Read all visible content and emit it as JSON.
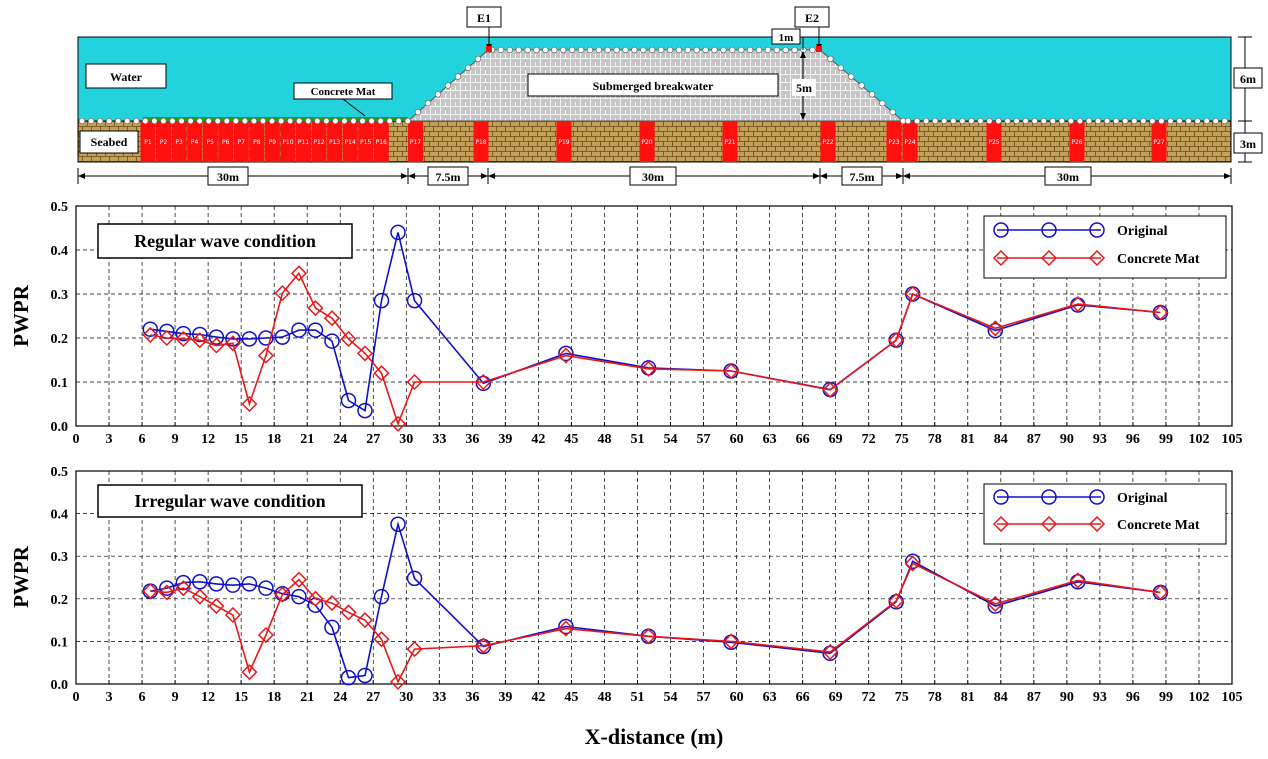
{
  "schematic": {
    "labels": {
      "water": "Water",
      "seabed": "Seabed",
      "concrete_mat": "Concrete Mat",
      "breakwater": "Submerged breakwater",
      "e1": "E1",
      "e2": "E2"
    },
    "dims": {
      "crest_depth": "1m",
      "height": "5m",
      "water_depth": "6m",
      "seabed_depth": "3m",
      "span_left": "30m",
      "span_slope_left": "7.5m",
      "span_crest": "30m",
      "span_slope_right": "7.5m",
      "span_right": "30m"
    },
    "points": [
      "P1",
      "P2",
      "P3",
      "P4",
      "P5",
      "P6",
      "P7",
      "P8",
      "P9",
      "P10",
      "P11",
      "P12",
      "P13",
      "P14",
      "P15",
      "P16",
      "P17",
      "P18",
      "P19",
      "P20",
      "P21",
      "P22",
      "P23",
      "P24",
      "P25",
      "P26",
      "P27"
    ],
    "colors": {
      "water": "#22d3de",
      "seabed": "#c2a05a",
      "breakwater": "#c4c4c4",
      "gauge": "#ff1010",
      "mat": "#1aa01a"
    }
  },
  "x_ticks": [
    "0",
    "3",
    "6",
    "9",
    "12",
    "15",
    "18",
    "21",
    "24",
    "27",
    "30",
    "33",
    "36",
    "39",
    "42",
    "45",
    "48",
    "51",
    "54",
    "57",
    "60",
    "63",
    "66",
    "69",
    "72",
    "75",
    "78",
    "81",
    "84",
    "87",
    "90",
    "93",
    "96",
    "99",
    "102",
    "105"
  ],
  "x_axis_label": "X-distance (m)",
  "chart_data": [
    {
      "type": "line",
      "condition": "Regular wave condition",
      "xlabel": "",
      "ylabel": "PWPR",
      "xlim": [
        0,
        105
      ],
      "ylim": [
        0,
        0.5
      ],
      "y_ticks": [
        "0.0",
        "0.1",
        "0.2",
        "0.3",
        "0.4",
        "0.5"
      ],
      "grid": true,
      "legend": "top-right",
      "series": [
        {
          "name": "Original",
          "color": "#1010c8",
          "marker": "circle",
          "points": [
            [
              6.75,
              0.22
            ],
            [
              8.25,
              0.215
            ],
            [
              9.75,
              0.21
            ],
            [
              11.25,
              0.208
            ],
            [
              12.75,
              0.202
            ],
            [
              14.25,
              0.198
            ],
            [
              15.75,
              0.198
            ],
            [
              17.25,
              0.2
            ],
            [
              18.75,
              0.202
            ],
            [
              20.25,
              0.218
            ],
            [
              21.75,
              0.218
            ],
            [
              23.25,
              0.193
            ],
            [
              24.75,
              0.058
            ],
            [
              26.25,
              0.035
            ],
            [
              27.75,
              0.285
            ],
            [
              29.25,
              0.44
            ],
            [
              30.75,
              0.285
            ],
            [
              37.0,
              0.097
            ],
            [
              44.5,
              0.165
            ],
            [
              52.0,
              0.132
            ],
            [
              59.5,
              0.125
            ],
            [
              68.5,
              0.083
            ],
            [
              74.5,
              0.195
            ],
            [
              76.0,
              0.3
            ],
            [
              83.5,
              0.217
            ],
            [
              91.0,
              0.275
            ],
            [
              98.5,
              0.258
            ]
          ]
        },
        {
          "name": "Concrete Mat",
          "color": "#e81818",
          "marker": "diamond",
          "points": [
            [
              6.75,
              0.207
            ],
            [
              8.25,
              0.2
            ],
            [
              9.75,
              0.198
            ],
            [
              11.25,
              0.195
            ],
            [
              12.75,
              0.183
            ],
            [
              14.25,
              0.188
            ],
            [
              15.75,
              0.05
            ],
            [
              17.25,
              0.16
            ],
            [
              18.75,
              0.302
            ],
            [
              20.25,
              0.347
            ],
            [
              21.75,
              0.268
            ],
            [
              23.25,
              0.245
            ],
            [
              24.75,
              0.198
            ],
            [
              26.25,
              0.165
            ],
            [
              27.75,
              0.12
            ],
            [
              29.25,
              0.005
            ],
            [
              30.75,
              0.1
            ],
            [
              37.0,
              0.1
            ],
            [
              44.5,
              0.16
            ],
            [
              52.0,
              0.13
            ],
            [
              59.5,
              0.125
            ],
            [
              68.5,
              0.082
            ],
            [
              74.5,
              0.195
            ],
            [
              76.0,
              0.3
            ],
            [
              83.5,
              0.222
            ],
            [
              91.0,
              0.277
            ],
            [
              98.5,
              0.258
            ]
          ]
        }
      ]
    },
    {
      "type": "line",
      "condition": "Irregular wave condition",
      "xlabel": "X-distance (m)",
      "ylabel": "PWPR",
      "xlim": [
        0,
        105
      ],
      "ylim": [
        0,
        0.5
      ],
      "y_ticks": [
        "0.0",
        "0.1",
        "0.2",
        "0.3",
        "0.4",
        "0.5"
      ],
      "grid": true,
      "legend": "top-right",
      "series": [
        {
          "name": "Original",
          "color": "#1010c8",
          "marker": "circle",
          "points": [
            [
              6.75,
              0.218
            ],
            [
              8.25,
              0.225
            ],
            [
              9.75,
              0.238
            ],
            [
              11.25,
              0.24
            ],
            [
              12.75,
              0.235
            ],
            [
              14.25,
              0.232
            ],
            [
              15.75,
              0.235
            ],
            [
              17.25,
              0.225
            ],
            [
              18.75,
              0.212
            ],
            [
              20.25,
              0.205
            ],
            [
              21.75,
              0.185
            ],
            [
              23.25,
              0.133
            ],
            [
              24.75,
              0.015
            ],
            [
              26.25,
              0.02
            ],
            [
              27.75,
              0.205
            ],
            [
              29.25,
              0.375
            ],
            [
              30.75,
              0.248
            ],
            [
              37.0,
              0.088
            ],
            [
              44.5,
              0.135
            ],
            [
              52.0,
              0.112
            ],
            [
              59.5,
              0.098
            ],
            [
              68.5,
              0.072
            ],
            [
              74.5,
              0.193
            ],
            [
              76.0,
              0.288
            ],
            [
              83.5,
              0.183
            ],
            [
              91.0,
              0.24
            ],
            [
              98.5,
              0.215
            ]
          ]
        },
        {
          "name": "Concrete Mat",
          "color": "#e81818",
          "marker": "diamond",
          "points": [
            [
              6.75,
              0.218
            ],
            [
              8.25,
              0.215
            ],
            [
              9.75,
              0.225
            ],
            [
              11.25,
              0.205
            ],
            [
              12.75,
              0.183
            ],
            [
              14.25,
              0.162
            ],
            [
              15.75,
              0.028
            ],
            [
              17.25,
              0.115
            ],
            [
              18.75,
              0.21
            ],
            [
              20.25,
              0.245
            ],
            [
              21.75,
              0.2
            ],
            [
              23.25,
              0.19
            ],
            [
              24.75,
              0.168
            ],
            [
              26.25,
              0.15
            ],
            [
              27.75,
              0.105
            ],
            [
              29.25,
              0.005
            ],
            [
              30.75,
              0.082
            ],
            [
              37.0,
              0.09
            ],
            [
              44.5,
              0.13
            ],
            [
              52.0,
              0.112
            ],
            [
              59.5,
              0.1
            ],
            [
              68.5,
              0.075
            ],
            [
              74.5,
              0.195
            ],
            [
              76.0,
              0.283
            ],
            [
              83.5,
              0.188
            ],
            [
              91.0,
              0.243
            ],
            [
              98.5,
              0.215
            ]
          ]
        }
      ]
    }
  ]
}
